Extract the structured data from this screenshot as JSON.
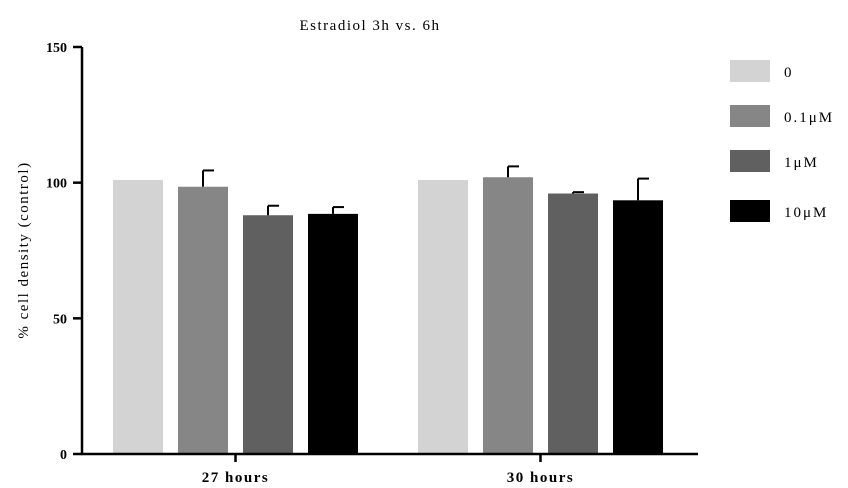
{
  "chart_data": {
    "type": "bar",
    "title": "Estradiol 3h vs. 6h",
    "xlabel": "",
    "ylabel": "% cell density (control)",
    "ylim": [
      0,
      150
    ],
    "yticks": [
      0,
      50,
      100,
      150
    ],
    "categories": [
      "27 hours",
      "30 hours"
    ],
    "series": [
      {
        "name": "0",
        "color": "#d3d3d3",
        "values": [
          101,
          101
        ],
        "errors": [
          0,
          0
        ]
      },
      {
        "name": "0.1μM",
        "color": "#868686",
        "values": [
          98.5,
          102
        ],
        "errors": [
          6,
          4
        ]
      },
      {
        "name": "1μM",
        "color": "#606060",
        "values": [
          88,
          96
        ],
        "errors": [
          3.5,
          0.5
        ]
      },
      {
        "name": "10μM",
        "color": "#000000",
        "values": [
          88.5,
          93.5
        ],
        "errors": [
          2.5,
          8
        ]
      }
    ],
    "error_bars": true,
    "legend_position": "right",
    "grid": false
  }
}
